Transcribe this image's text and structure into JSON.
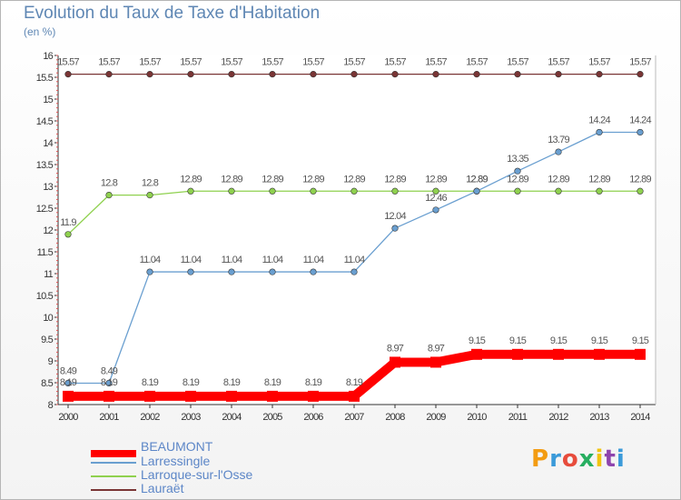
{
  "chart_data": {
    "type": "line",
    "title": "Evolution du Taux de Taxe d'Habitation",
    "subtitle": "(en %)",
    "x": [
      "2000",
      "2001",
      "2002",
      "2003",
      "2004",
      "2005",
      "2006",
      "2007",
      "2008",
      "2009",
      "2010",
      "2011",
      "2012",
      "2013",
      "2014"
    ],
    "ylim": [
      8,
      16
    ],
    "yticks": [
      "8",
      "8.5",
      "9",
      "9.5",
      "10",
      "10.5",
      "11",
      "11.5",
      "12",
      "12.5",
      "13",
      "13.5",
      "14",
      "14.5",
      "15",
      "15.5",
      "16"
    ],
    "grid": false,
    "legend_position": "bottom-left",
    "series": [
      {
        "name": "BEAUMONT",
        "color": "#ff0000",
        "values": [
          8.19,
          8.19,
          8.19,
          8.19,
          8.19,
          8.19,
          8.19,
          8.19,
          8.97,
          8.97,
          9.15,
          9.15,
          9.15,
          9.15,
          9.15
        ],
        "labels": [
          "8.19",
          "8.19",
          "8.19",
          "8.19",
          "8.19",
          "8.19",
          "8.19",
          "8.19",
          "8.97",
          "8.97",
          "9.15",
          "9.15",
          "9.15",
          "9.15",
          "9.15"
        ]
      },
      {
        "name": "Larressingle",
        "color": "#6a9fd0",
        "values": [
          8.49,
          8.49,
          11.04,
          11.04,
          11.04,
          11.04,
          11.04,
          11.04,
          12.04,
          12.46,
          12.89,
          13.35,
          13.79,
          14.24,
          14.24
        ],
        "labels": [
          "8.49",
          "8.49",
          "11.04",
          "11.04",
          "11.04",
          "11.04",
          "11.04",
          "11.04",
          "12.04",
          "12.46",
          "12.89",
          "13.35",
          "13.79",
          "14.24",
          "14.24"
        ]
      },
      {
        "name": "Larroque-sur-l'Osse",
        "color": "#8fd14f",
        "values": [
          11.9,
          12.8,
          12.8,
          12.89,
          12.89,
          12.89,
          12.89,
          12.89,
          12.89,
          12.89,
          12.89,
          12.89,
          12.89,
          12.89,
          12.89
        ],
        "labels": [
          "11.9",
          "12.8",
          "12.8",
          "12.89",
          "12.89",
          "12.89",
          "12.89",
          "12.89",
          "12.89",
          "12.89",
          "12.89",
          "12.89",
          "12.89",
          "12.89",
          "12.89"
        ]
      },
      {
        "name": "Lauraët",
        "color": "#7a3535",
        "values": [
          15.57,
          15.57,
          15.57,
          15.57,
          15.57,
          15.57,
          15.57,
          15.57,
          15.57,
          15.57,
          15.57,
          15.57,
          15.57,
          15.57,
          15.57
        ],
        "labels": [
          "15.57",
          "15.57",
          "15.57",
          "15.57",
          "15.57",
          "15.57",
          "15.57",
          "15.57",
          "15.57",
          "15.57",
          "15.57",
          "15.57",
          "15.57",
          "15.57",
          "15.57"
        ]
      }
    ]
  },
  "logo": {
    "letters": [
      "P",
      "r",
      "o",
      "x",
      "i",
      "t",
      "i"
    ],
    "colors": [
      "#f39c12",
      "#3a9ad9",
      "#e74c3c",
      "#27ae60",
      "#f1c40f",
      "#8e44ad",
      "#3a9ad9"
    ]
  }
}
